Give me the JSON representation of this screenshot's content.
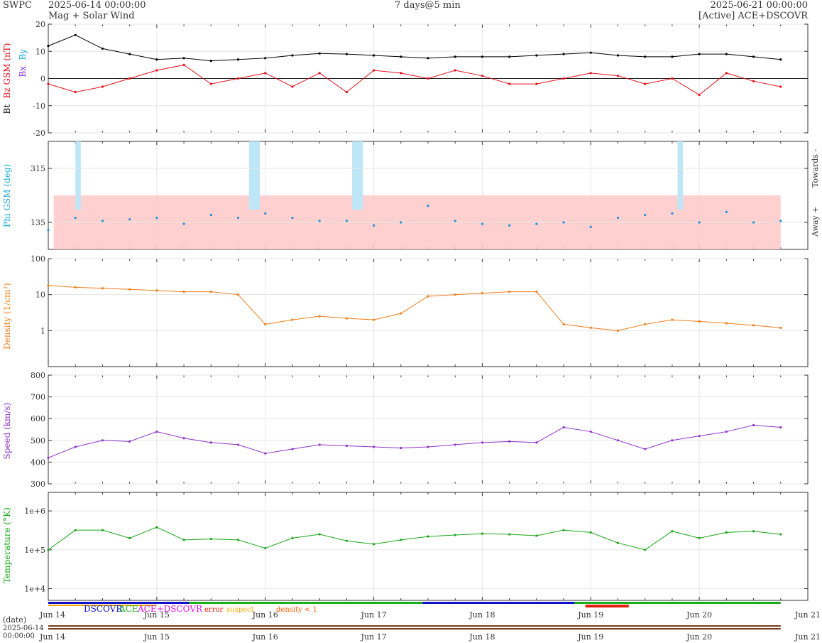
{
  "header": {
    "brand": "SWPC",
    "start_time": "2025-06-14 00:00:00",
    "subtitle": "Mag + Solar Wind",
    "span": "7 days@5 min",
    "end_time": "2025-06-21 00:00:00",
    "source": "[Active] ACE+DSCOVR"
  },
  "colors": {
    "bt": "#000000",
    "bz": "#e8101c",
    "bx": "#8a2be2",
    "by": "#1aa9e0",
    "phi": "#1e90d8",
    "phi_away_band": "#ffc8c8",
    "phi_towards_band": "#bfe6f7",
    "density": "#f07f1a",
    "speed": "#8f34c8",
    "temperature": "#1aa81a",
    "dscovr": "#1010c8",
    "ace": "#18b018",
    "ace_dscovr": "#e010e0",
    "error": "#e82010",
    "suspect": "#f0a800",
    "density_lt1": "#ff5a00",
    "grid": "#e6e6e6",
    "frame": "#333333"
  },
  "chart_data": [
    {
      "type": "line",
      "panel": "mag",
      "ylabel_parts": [
        "Bt",
        "Bz GSM (nT)"
      ],
      "ylabel_sub": [
        "Bx",
        "By"
      ],
      "ylim": [
        -20,
        20
      ],
      "yticks": [
        20,
        10,
        0,
        -10,
        -20
      ],
      "grid": true,
      "x_days": [
        0,
        0.25,
        0.5,
        0.75,
        1,
        1.25,
        1.5,
        1.75,
        2,
        2.25,
        2.5,
        2.75,
        3,
        3.25,
        3.5,
        3.75,
        4,
        4.25,
        4.5,
        4.75,
        5,
        5.25,
        5.5,
        5.75,
        6,
        6.25,
        6.5,
        6.75
      ],
      "series": [
        {
          "name": "Bt",
          "values": [
            12,
            16,
            11,
            9,
            7,
            7.5,
            6.5,
            7,
            7.5,
            8.5,
            9.2,
            9,
            8.5,
            8,
            7.5,
            8,
            8,
            8,
            8.5,
            9,
            9.5,
            8.5,
            8,
            8,
            9,
            9,
            8,
            7
          ]
        },
        {
          "name": "Bz",
          "values": [
            -2,
            -5,
            -3,
            0,
            3,
            5,
            -2,
            0,
            2,
            -3,
            2,
            -5,
            3,
            2,
            0,
            3,
            1,
            -2,
            -2,
            0,
            2,
            1,
            -2,
            0,
            -6,
            2,
            -1,
            -3
          ]
        }
      ]
    },
    {
      "type": "scatter",
      "panel": "phi",
      "ylabel": "Phi GSM (deg)",
      "ylim": [
        45,
        405
      ],
      "yticks": [
        315,
        135
      ],
      "right_labels": [
        "Towards -",
        "Away +"
      ],
      "grid": true,
      "x_days": [
        0,
        0.25,
        0.5,
        0.75,
        1,
        1.25,
        1.5,
        1.75,
        2,
        2.25,
        2.5,
        2.75,
        3,
        3.25,
        3.5,
        3.75,
        4,
        4.25,
        4.5,
        4.75,
        5,
        5.25,
        5.5,
        5.75,
        6,
        6.25,
        6.5,
        6.75
      ],
      "values": [
        110,
        150,
        140,
        145,
        150,
        130,
        160,
        150,
        165,
        150,
        140,
        140,
        125,
        135,
        190,
        140,
        130,
        125,
        130,
        135,
        120,
        150,
        160,
        165,
        135,
        170,
        135,
        140
      ]
    },
    {
      "type": "line",
      "panel": "density",
      "ylabel": "Density (1/cm³)",
      "ylim": [
        0.1,
        100
      ],
      "yscale": "log",
      "yticks": [
        "100",
        "10",
        "1"
      ],
      "grid": true,
      "x_days": [
        0,
        0.25,
        0.5,
        0.75,
        1,
        1.25,
        1.5,
        1.75,
        2,
        2.25,
        2.5,
        2.75,
        3,
        3.25,
        3.5,
        3.75,
        4,
        4.25,
        4.5,
        4.75,
        5,
        5.25,
        5.5,
        5.75,
        6,
        6.25,
        6.5,
        6.75
      ],
      "values": [
        18,
        16,
        15,
        14,
        13,
        12,
        12,
        10,
        1.5,
        2,
        2.5,
        2.2,
        2,
        3,
        9,
        10,
        11,
        12,
        12,
        1.5,
        1.2,
        1,
        1.5,
        2,
        1.8,
        1.6,
        1.4,
        1.2
      ]
    },
    {
      "type": "line",
      "panel": "speed",
      "ylabel": "Speed (km/s)",
      "ylim": [
        300,
        800
      ],
      "yticks": [
        800,
        700,
        600,
        500,
        400,
        300
      ],
      "grid": true,
      "x_days": [
        0,
        0.25,
        0.5,
        0.75,
        1,
        1.25,
        1.5,
        1.75,
        2,
        2.25,
        2.5,
        2.75,
        3,
        3.25,
        3.5,
        3.75,
        4,
        4.25,
        4.5,
        4.75,
        5,
        5.25,
        5.5,
        5.75,
        6,
        6.25,
        6.5,
        6.75
      ],
      "values": [
        420,
        470,
        500,
        495,
        540,
        510,
        490,
        480,
        440,
        460,
        480,
        475,
        470,
        465,
        470,
        480,
        490,
        495,
        490,
        560,
        540,
        500,
        460,
        500,
        520,
        540,
        570,
        560
      ]
    },
    {
      "type": "line",
      "panel": "temperature",
      "ylabel": "Temperature (°K)",
      "ylim": [
        5000,
        3000000
      ],
      "yscale": "log",
      "yticks": [
        "1e+6",
        "1e+5",
        "1e+4"
      ],
      "grid": true,
      "x_days": [
        0,
        0.25,
        0.5,
        0.75,
        1,
        1.25,
        1.5,
        1.75,
        2,
        2.25,
        2.5,
        2.75,
        3,
        3.25,
        3.5,
        3.75,
        4,
        4.25,
        4.5,
        4.75,
        5,
        5.25,
        5.5,
        5.75,
        6,
        6.25,
        6.5,
        6.75
      ],
      "values": [
        100000,
        320000,
        320000,
        200000,
        380000,
        180000,
        190000,
        180000,
        110000,
        200000,
        250000,
        170000,
        140000,
        180000,
        220000,
        240000,
        260000,
        250000,
        230000,
        320000,
        280000,
        150000,
        100000,
        300000,
        200000,
        280000,
        300000,
        250000
      ]
    }
  ],
  "time_axis": {
    "xlim_days": [
      0,
      7
    ],
    "tick_labels": [
      "Jun 14",
      "Jun 15",
      "Jun 16",
      "Jun 17",
      "Jun 18",
      "Jun 19",
      "Jun 20",
      "Jun 21"
    ],
    "date_label": "(date)",
    "start_label_date": "2025-06-14",
    "start_label_time": "00:00:00"
  },
  "legend": {
    "items": [
      "DSCOVR",
      "ACE",
      "ACE+DSCOVR",
      "error",
      "suspect",
      "density < 1"
    ]
  }
}
